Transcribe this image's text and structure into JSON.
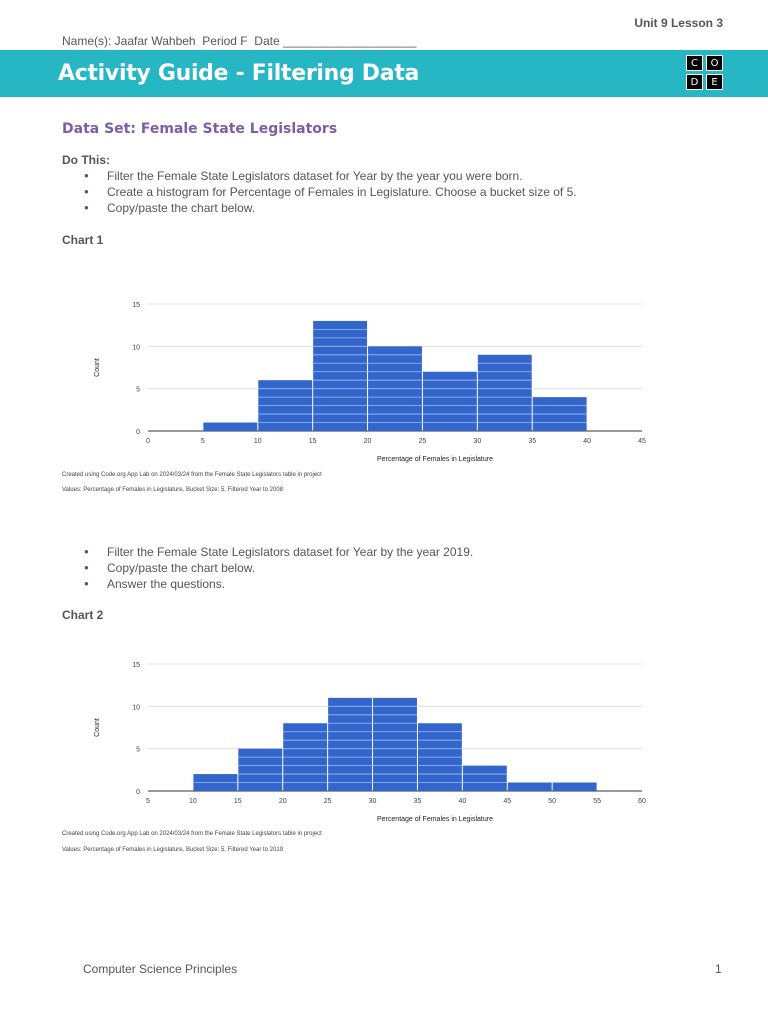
{
  "header": {
    "unit": "Unit 9 Lesson 3",
    "name_line": "Name(s): Jaafar Wahbeh  Period F  Date ____________________",
    "title": "Activity Guide - Filtering Data",
    "logo_letters": [
      "C",
      "O",
      "D",
      "E"
    ],
    "banner_color": "#26b6c4"
  },
  "section_title": "Data Set: Female State Legislators",
  "do_this": "Do This:",
  "bullets_1": [
    "Filter the Female State Legislators dataset for Year by the year you were born.",
    "Create a histogram for Percentage of Females in Legislature. Choose a bucket size of 5.",
    "Copy/paste the chart below."
  ],
  "bullets_2": [
    "Filter the Female State Legislators dataset for Year by the year 2019.",
    "Copy/paste the chart below.",
    "Answer the questions."
  ],
  "chart_data": [
    {
      "heading": "Chart 1",
      "type": "bar",
      "bin_edges": [
        0,
        5,
        10,
        15,
        20,
        25,
        30,
        35,
        40,
        45
      ],
      "x_ticks": [
        "0",
        "5",
        "10",
        "15",
        "20",
        "25",
        "30",
        "35",
        "40",
        "45"
      ],
      "values": [
        0,
        1,
        6,
        13,
        10,
        7,
        9,
        4,
        0
      ],
      "xlim": [
        0,
        45
      ],
      "ylim": [
        0,
        15
      ],
      "y_ticks": [
        "0",
        "5",
        "10",
        "15"
      ],
      "xlabel": "Percentage of Females in Legislature",
      "ylabel": "Count",
      "bar_color": "#3366cc",
      "caption_1": "Created using Code.org App Lab on 2024/03/24 from the Female State Legislators table in project",
      "caption_2": "Values: Percentage of Females in Legislature, Bucket Size: 5, Filtered Year to 2008"
    },
    {
      "heading": "Chart 2",
      "type": "bar",
      "bin_edges": [
        5,
        10,
        15,
        20,
        25,
        30,
        35,
        40,
        45,
        50,
        55,
        60
      ],
      "x_ticks": [
        "5",
        "10",
        "15",
        "20",
        "25",
        "30",
        "35",
        "40",
        "45",
        "50",
        "55",
        "60"
      ],
      "values": [
        0,
        2,
        5,
        8,
        11,
        11,
        8,
        3,
        1,
        1,
        0
      ],
      "xlim": [
        5,
        60
      ],
      "ylim": [
        0,
        15
      ],
      "y_ticks": [
        "0",
        "5",
        "10",
        "15"
      ],
      "xlabel": "Percentage of Females in Legislature",
      "ylabel": "Count",
      "bar_color": "#3366cc",
      "caption_1": "Created using Code.org App Lab on 2024/03/24 from the Female State Legislators table in project",
      "caption_2": "Values: Percentage of Females in Legislature, Bucket Size: 5, Filtered Year to 2019"
    }
  ],
  "footer": {
    "course": "Computer Science Principles",
    "page": "1"
  }
}
